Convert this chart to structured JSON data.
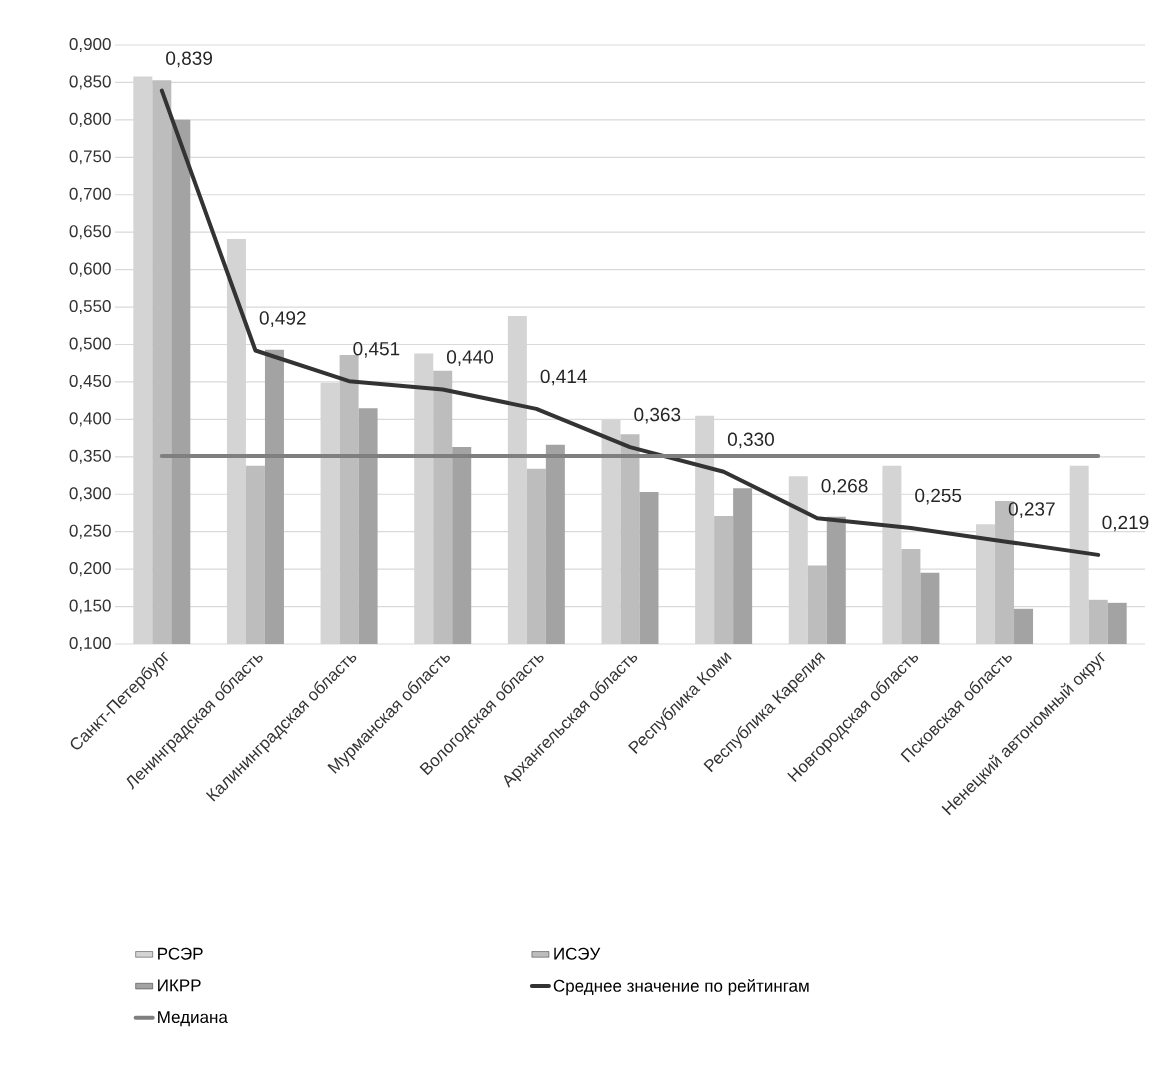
{
  "chart_data": {
    "type": "bar",
    "categories": [
      "Санкт-Петербург",
      "Ленинградская область",
      "Калининградская область",
      "Мурманская область",
      "Вологодская область",
      "Архангельская область",
      "Республика Коми",
      "Республика Карелия",
      "Новгородская область",
      "Псковская область",
      "Ненецкий автономный округ"
    ],
    "series": [
      {
        "name": "РСЭР",
        "color": "#d4d4d4",
        "values": [
          0.858,
          0.641,
          0.449,
          0.488,
          0.538,
          0.399,
          0.405,
          0.324,
          0.338,
          0.26,
          0.338
        ]
      },
      {
        "name": "ИСЭУ",
        "color": "#bdbdbd",
        "values": [
          0.853,
          0.338,
          0.486,
          0.465,
          0.334,
          0.38,
          0.271,
          0.205,
          0.227,
          0.291,
          0.159
        ]
      },
      {
        "name": "ИКРР",
        "color": "#a3a3a3",
        "values": [
          0.8,
          0.493,
          0.415,
          0.363,
          0.366,
          0.303,
          0.308,
          0.27,
          0.195,
          0.147,
          0.155
        ]
      },
      {
        "name": "Среднее значение по рейтингам",
        "type": "line",
        "color": "#333333",
        "values": [
          0.839,
          0.492,
          0.451,
          0.44,
          0.414,
          0.363,
          0.33,
          0.268,
          0.255,
          0.237,
          0.219
        ],
        "value_labels": [
          "0,839",
          "0,492",
          "0,451",
          "0,440",
          "0,414",
          "0,363",
          "0,330",
          "0,268",
          "0,255",
          "0,237",
          "0,219"
        ]
      },
      {
        "name": "Медиана",
        "type": "line",
        "color": "#7f7f7f",
        "values": [
          0.351,
          0.351,
          0.351,
          0.351,
          0.351,
          0.351,
          0.351,
          0.351,
          0.351,
          0.351,
          0.351
        ]
      }
    ],
    "ylim": [
      0.1,
      0.9
    ],
    "yticks": [
      {
        "value": 0.1,
        "label": "0,100"
      },
      {
        "value": 0.15,
        "label": "0,150"
      },
      {
        "value": 0.2,
        "label": "0,200"
      },
      {
        "value": 0.25,
        "label": "0,250"
      },
      {
        "value": 0.3,
        "label": "0,300"
      },
      {
        "value": 0.35,
        "label": "0,350"
      },
      {
        "value": 0.4,
        "label": "0,400"
      },
      {
        "value": 0.45,
        "label": "0,450"
      },
      {
        "value": 0.5,
        "label": "0,500"
      },
      {
        "value": 0.55,
        "label": "0,550"
      },
      {
        "value": 0.6,
        "label": "0,600"
      },
      {
        "value": 0.65,
        "label": "0,650"
      },
      {
        "value": 0.7,
        "label": "0,700"
      },
      {
        "value": 0.75,
        "label": "0,750"
      },
      {
        "value": 0.8,
        "label": "0,800"
      },
      {
        "value": 0.85,
        "label": "0,850"
      },
      {
        "value": 0.9,
        "label": "0,900"
      }
    ],
    "grid": "y",
    "legend": "bottom"
  }
}
